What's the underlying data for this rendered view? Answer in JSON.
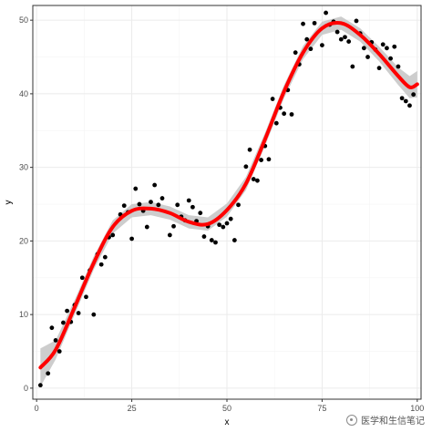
{
  "chart_data": {
    "type": "scatter",
    "title": "",
    "xlabel": "x",
    "ylabel": "y",
    "xlim": [
      -1,
      101
    ],
    "ylim": [
      -1.5,
      52
    ],
    "x_ticks": [
      0,
      25,
      50,
      75,
      100
    ],
    "y_ticks": [
      0,
      10,
      20,
      30,
      40,
      50
    ],
    "grid": true,
    "legend": "none",
    "colors": {
      "points": "#000000",
      "smooth_line": "#ff0000",
      "confidence_band": "#c8c8c8",
      "grid_major": "#ebebeb",
      "grid_minor": "#f5f5f5",
      "panel_border": "#333333"
    },
    "points": [
      [
        1,
        0.4
      ],
      [
        3,
        2.0
      ],
      [
        4,
        8.2
      ],
      [
        5,
        6.5
      ],
      [
        6,
        5.0
      ],
      [
        7,
        8.9
      ],
      [
        8,
        10.5
      ],
      [
        9,
        9.0
      ],
      [
        10,
        11.3
      ],
      [
        11,
        10.2
      ],
      [
        12,
        15.0
      ],
      [
        13,
        12.4
      ],
      [
        14,
        16.0
      ],
      [
        15,
        10.0
      ],
      [
        16,
        18.2
      ],
      [
        17,
        16.8
      ],
      [
        18,
        17.8
      ],
      [
        19,
        20.5
      ],
      [
        20,
        20.8
      ],
      [
        22,
        23.6
      ],
      [
        23,
        24.8
      ],
      [
        24,
        23.9
      ],
      [
        25,
        20.3
      ],
      [
        26,
        27.1
      ],
      [
        27,
        25.0
      ],
      [
        28,
        24.1
      ],
      [
        29,
        21.9
      ],
      [
        30,
        25.3
      ],
      [
        31,
        27.6
      ],
      [
        32,
        24.9
      ],
      [
        33,
        25.8
      ],
      [
        35,
        20.8
      ],
      [
        36,
        22.0
      ],
      [
        37,
        24.9
      ],
      [
        38,
        23.3
      ],
      [
        39,
        22.8
      ],
      [
        40,
        25.5
      ],
      [
        41,
        24.6
      ],
      [
        42,
        22.7
      ],
      [
        43,
        23.8
      ],
      [
        44,
        20.6
      ],
      [
        45,
        22.0
      ],
      [
        46,
        20.1
      ],
      [
        47,
        19.8
      ],
      [
        48,
        22.2
      ],
      [
        49,
        21.9
      ],
      [
        50,
        22.4
      ],
      [
        51,
        23.0
      ],
      [
        52,
        20.1
      ],
      [
        53,
        24.9
      ],
      [
        55,
        30.1
      ],
      [
        56,
        32.4
      ],
      [
        57,
        28.4
      ],
      [
        58,
        28.2
      ],
      [
        59,
        31.0
      ],
      [
        60,
        32.9
      ],
      [
        61,
        31.1
      ],
      [
        62,
        39.3
      ],
      [
        63,
        36.0
      ],
      [
        64,
        38.1
      ],
      [
        65,
        37.3
      ],
      [
        66,
        40.5
      ],
      [
        67,
        37.2
      ],
      [
        68,
        45.6
      ],
      [
        69,
        44.0
      ],
      [
        70,
        49.5
      ],
      [
        71,
        47.4
      ],
      [
        72,
        46.1
      ],
      [
        73,
        49.6
      ],
      [
        75,
        46.6
      ],
      [
        76,
        51.0
      ],
      [
        77,
        49.4
      ],
      [
        78,
        49.8
      ],
      [
        79,
        48.4
      ],
      [
        80,
        47.4
      ],
      [
        81,
        47.7
      ],
      [
        82,
        47.1
      ],
      [
        83,
        43.7
      ],
      [
        84,
        49.9
      ],
      [
        85,
        48.2
      ],
      [
        86,
        46.2
      ],
      [
        87,
        45.0
      ],
      [
        88,
        47.0
      ],
      [
        89,
        46.0
      ],
      [
        90,
        43.5
      ],
      [
        91,
        46.7
      ],
      [
        92,
        46.2
      ],
      [
        93,
        44.8
      ],
      [
        94,
        46.4
      ],
      [
        95,
        43.7
      ],
      [
        96,
        39.4
      ],
      [
        97,
        39.0
      ],
      [
        98,
        38.4
      ],
      [
        99,
        39.9
      ]
    ],
    "smooth": {
      "x": [
        1,
        5,
        10,
        15,
        20,
        25,
        30,
        35,
        40,
        45,
        50,
        55,
        60,
        65,
        70,
        75,
        80,
        85,
        90,
        95,
        98,
        100
      ],
      "y": [
        2.8,
        5.2,
        11.0,
        17.0,
        21.9,
        24.1,
        24.4,
        23.8,
        22.6,
        22.3,
        24.2,
        27.8,
        33.8,
        40.3,
        45.6,
        48.9,
        49.6,
        48.0,
        45.4,
        42.4,
        40.9,
        41.3
      ],
      "band_halfwidth": [
        2.6,
        1.3,
        1.0,
        0.9,
        0.9,
        0.9,
        0.9,
        0.9,
        0.9,
        0.9,
        0.9,
        0.9,
        0.9,
        0.9,
        0.9,
        0.9,
        0.9,
        0.9,
        1.0,
        1.2,
        1.5,
        1.8
      ]
    }
  },
  "watermark": {
    "icon": "wechat-logo-icon",
    "text": "医学和生信笔记"
  }
}
